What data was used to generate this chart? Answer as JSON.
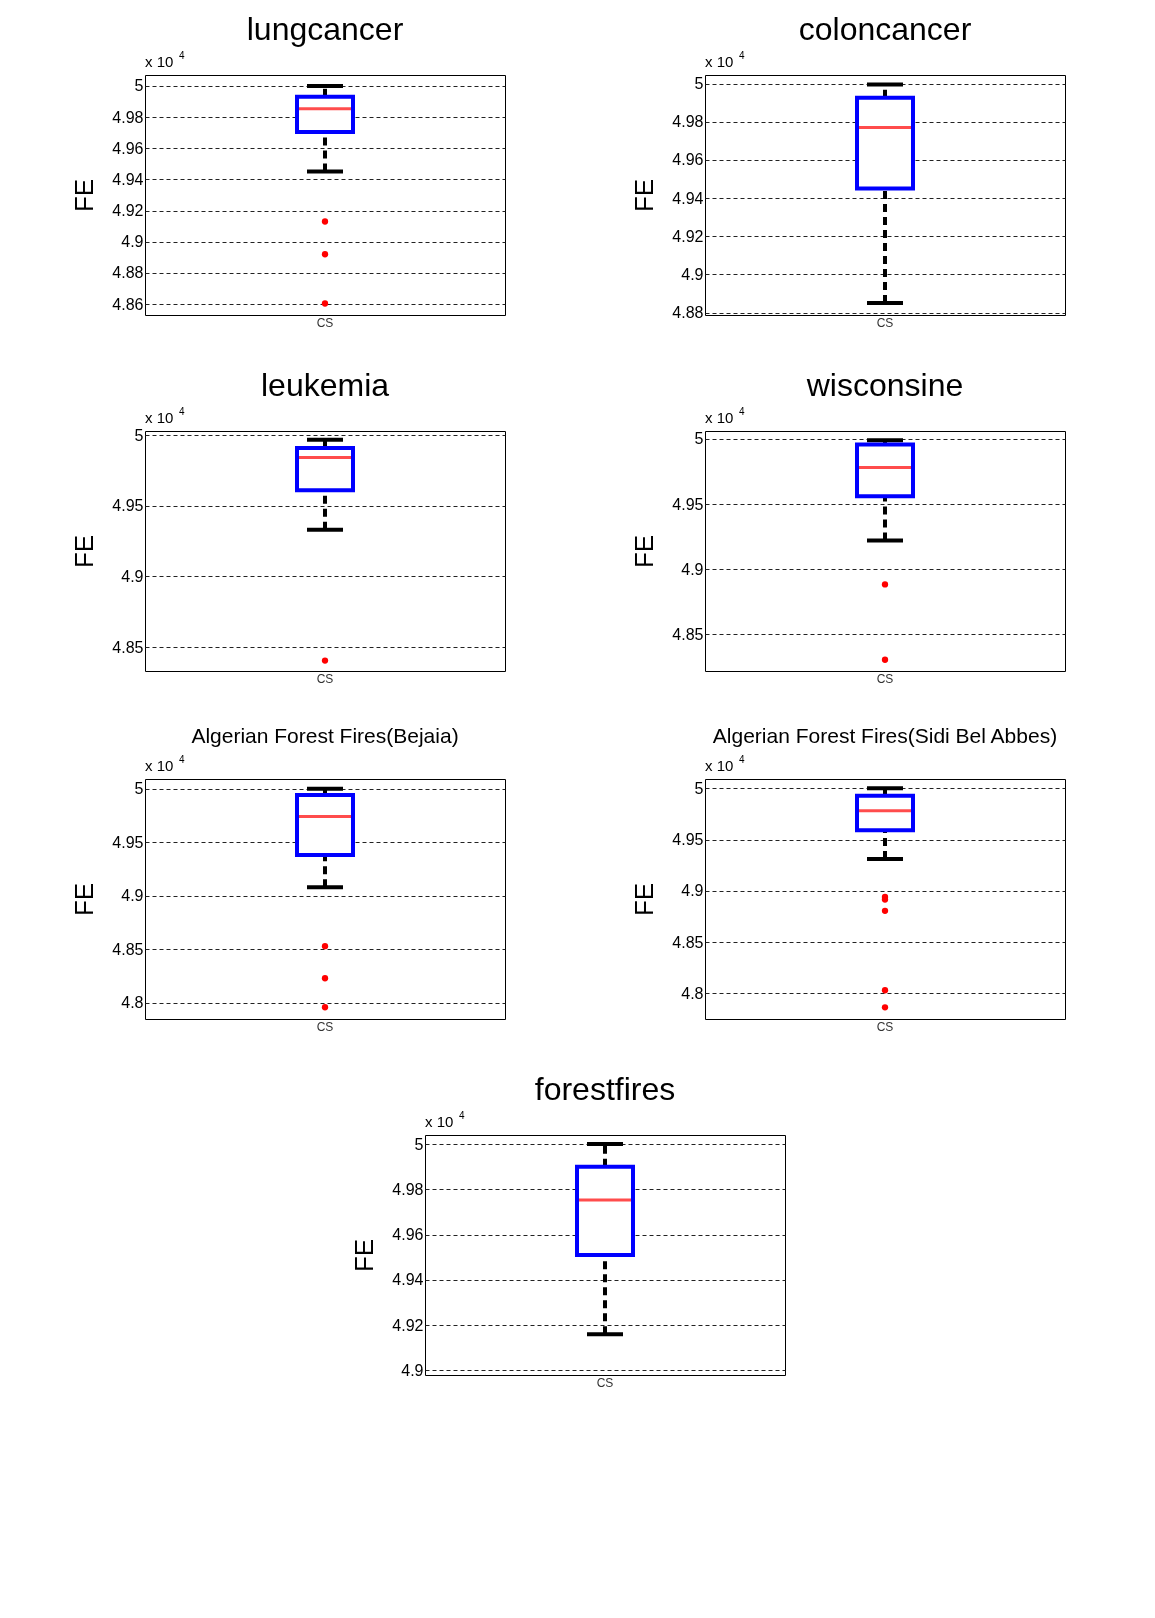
{
  "chart_data": [
    {
      "type": "box",
      "title": "lungcancer",
      "ylabel": "FE",
      "categories": [
        "CS"
      ],
      "ylim": [
        4.853,
        5.007
      ],
      "yticks": [
        4.86,
        4.88,
        4.9,
        4.92,
        4.94,
        4.96,
        4.98,
        5
      ],
      "grid": "y",
      "annotations": [
        "x 10$^{4}$"
      ],
      "series": [
        {
          "color": "#0000ff",
          "boxes": [
            {
              "low": 4.945,
              "q1": 4.9705,
              "median": 4.9853,
              "q3": 4.993,
              "high": 5.0,
              "outliers": [
                4.913,
                4.892,
                4.8604
              ]
            }
          ]
        }
      ]
    },
    {
      "type": "box",
      "title": "coloncancer",
      "ylabel": "FE",
      "categories": [
        "CS"
      ],
      "ylim": [
        4.8787,
        5.0045
      ],
      "yticks": [
        4.88,
        4.9,
        4.92,
        4.94,
        4.96,
        4.98,
        5
      ],
      "grid": "y",
      "annotations": [
        "x 10$^{4}$"
      ],
      "series": [
        {
          "color": "#0000ff",
          "boxes": [
            {
              "low": 4.885,
              "q1": 4.945,
              "median": 4.977,
              "q3": 4.9926,
              "high": 4.9995
            }
          ]
        }
      ]
    },
    {
      "type": "box",
      "title": "leukemia",
      "ylabel": "FE",
      "categories": [
        "CS"
      ],
      "ylim": [
        4.833,
        5.003
      ],
      "yticks": [
        4.85,
        4.9,
        4.95,
        5
      ],
      "grid": "y",
      "annotations": [
        "x 10$^{4}$"
      ],
      "series": [
        {
          "color": "#0000ff",
          "boxes": [
            {
              "low": 4.933,
              "q1": 4.961,
              "median": 4.9842,
              "q3": 4.991,
              "high": 4.9968,
              "outliers": [
                4.8404
              ]
            }
          ]
        }
      ]
    },
    {
      "type": "box",
      "title": "wisconsine",
      "ylabel": "FE",
      "categories": [
        "CS"
      ],
      "ylim": [
        4.822,
        5.006
      ],
      "yticks": [
        4.85,
        4.9,
        4.95,
        5
      ],
      "grid": "y",
      "annotations": [
        "x 10$^{4}$"
      ],
      "series": [
        {
          "color": "#0000ff",
          "boxes": [
            {
              "low": 4.922,
              "q1": 4.956,
              "median": 4.978,
              "q3": 4.9957,
              "high": 4.999,
              "outliers": [
                4.8884,
                4.8306
              ]
            }
          ]
        }
      ]
    },
    {
      "type": "box",
      "title": "Algerian Forest Fires(Bejaia)",
      "ylabel": "FE",
      "categories": [
        "CS"
      ],
      "ylim": [
        4.785,
        5.009
      ],
      "yticks": [
        4.8,
        4.85,
        4.9,
        4.95,
        5
      ],
      "grid": "y",
      "annotations": [
        "x 10$^{4}$"
      ],
      "series": [
        {
          "color": "#0000ff",
          "boxes": [
            {
              "low": 4.908,
              "q1": 4.938,
              "median": 4.974,
              "q3": 4.994,
              "high": 5.0,
              "outliers": [
                4.853,
                4.823,
                4.796
              ]
            }
          ]
        }
      ]
    },
    {
      "type": "box",
      "title": "Algerian Forest Fires(Sidi Bel Abbes)",
      "ylabel": "FE",
      "categories": [
        "CS"
      ],
      "ylim": [
        4.775,
        5.009
      ],
      "yticks": [
        4.8,
        4.85,
        4.9,
        4.95,
        5
      ],
      "grid": "y",
      "annotations": [
        "x 10$^{4}$"
      ],
      "series": [
        {
          "color": "#0000ff",
          "boxes": [
            {
              "low": 4.931,
              "q1": 4.959,
              "median": 4.978,
              "q3": 4.9926,
              "high": 5.0,
              "outliers": [
                4.894,
                4.8915,
                4.8805,
                4.803,
                4.7864
              ]
            }
          ]
        }
      ]
    },
    {
      "type": "box",
      "title": "forestfires",
      "ylabel": "FE",
      "categories": [
        "CS"
      ],
      "ylim": [
        4.898,
        5.004
      ],
      "yticks": [
        4.9,
        4.92,
        4.94,
        4.96,
        4.98,
        5
      ],
      "grid": "y",
      "annotations": [
        "x 10$^{4}$"
      ],
      "series": [
        {
          "color": "#0000ff",
          "boxes": [
            {
              "low": 4.916,
              "q1": 4.951,
              "median": 4.9753,
              "q3": 4.99,
              "high": 5.0
            }
          ]
        }
      ]
    }
  ]
}
